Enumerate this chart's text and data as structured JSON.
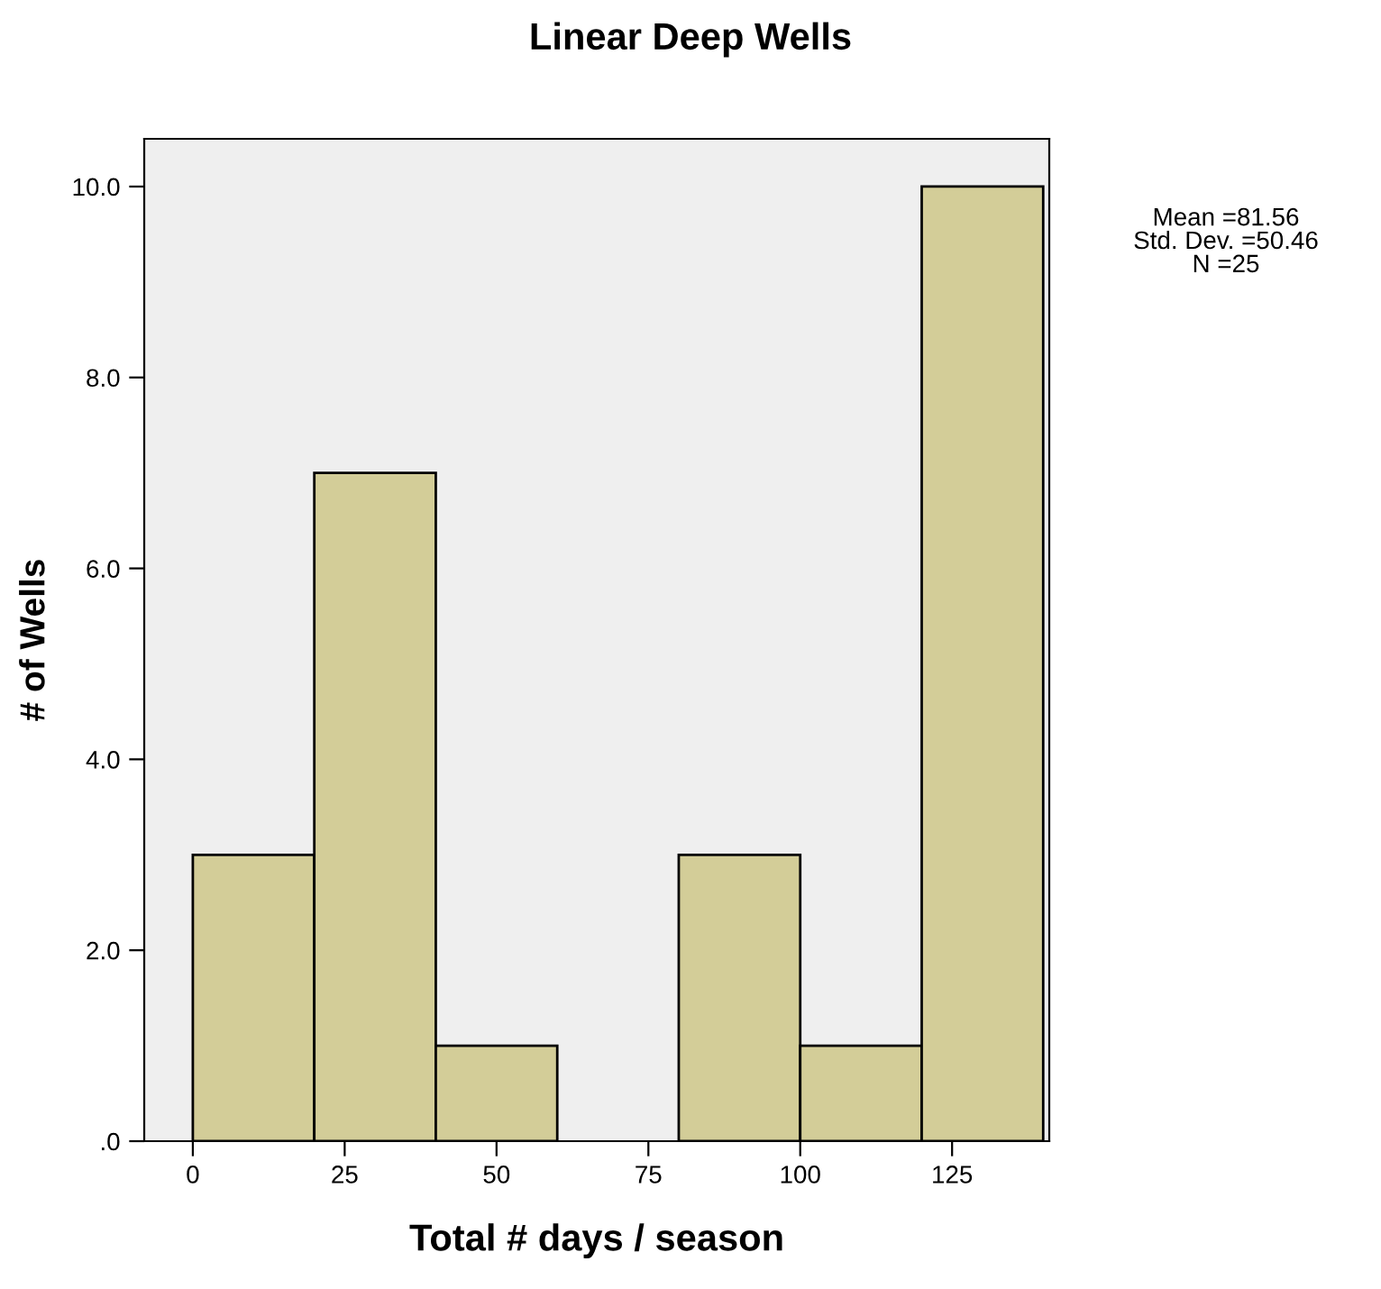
{
  "chart_data": {
    "type": "histogram",
    "title": "Linear Deep Wells",
    "xlabel": "Total # days / season",
    "ylabel": "# of Wells",
    "bins": [
      0,
      20,
      40,
      60,
      80,
      100,
      120,
      140
    ],
    "values": [
      3,
      7,
      1,
      0,
      3,
      1,
      10
    ],
    "color": "#d3cd98",
    "xlim": [
      -8,
      141
    ],
    "xticks": [
      0,
      25,
      50,
      75,
      100,
      125
    ],
    "ylim": [
      0,
      10.5
    ],
    "yticks": [
      {
        "value": 0,
        "label": ".0"
      },
      {
        "value": 2,
        "label": "2.0"
      },
      {
        "value": 4,
        "label": "4.0"
      },
      {
        "value": 6,
        "label": "6.0"
      },
      {
        "value": 8,
        "label": "8.0"
      },
      {
        "value": 10,
        "label": "10.0"
      }
    ],
    "grid": false,
    "annotations": [
      "Mean =81.56\nStd. Dev. =50.46\nN =25"
    ]
  }
}
